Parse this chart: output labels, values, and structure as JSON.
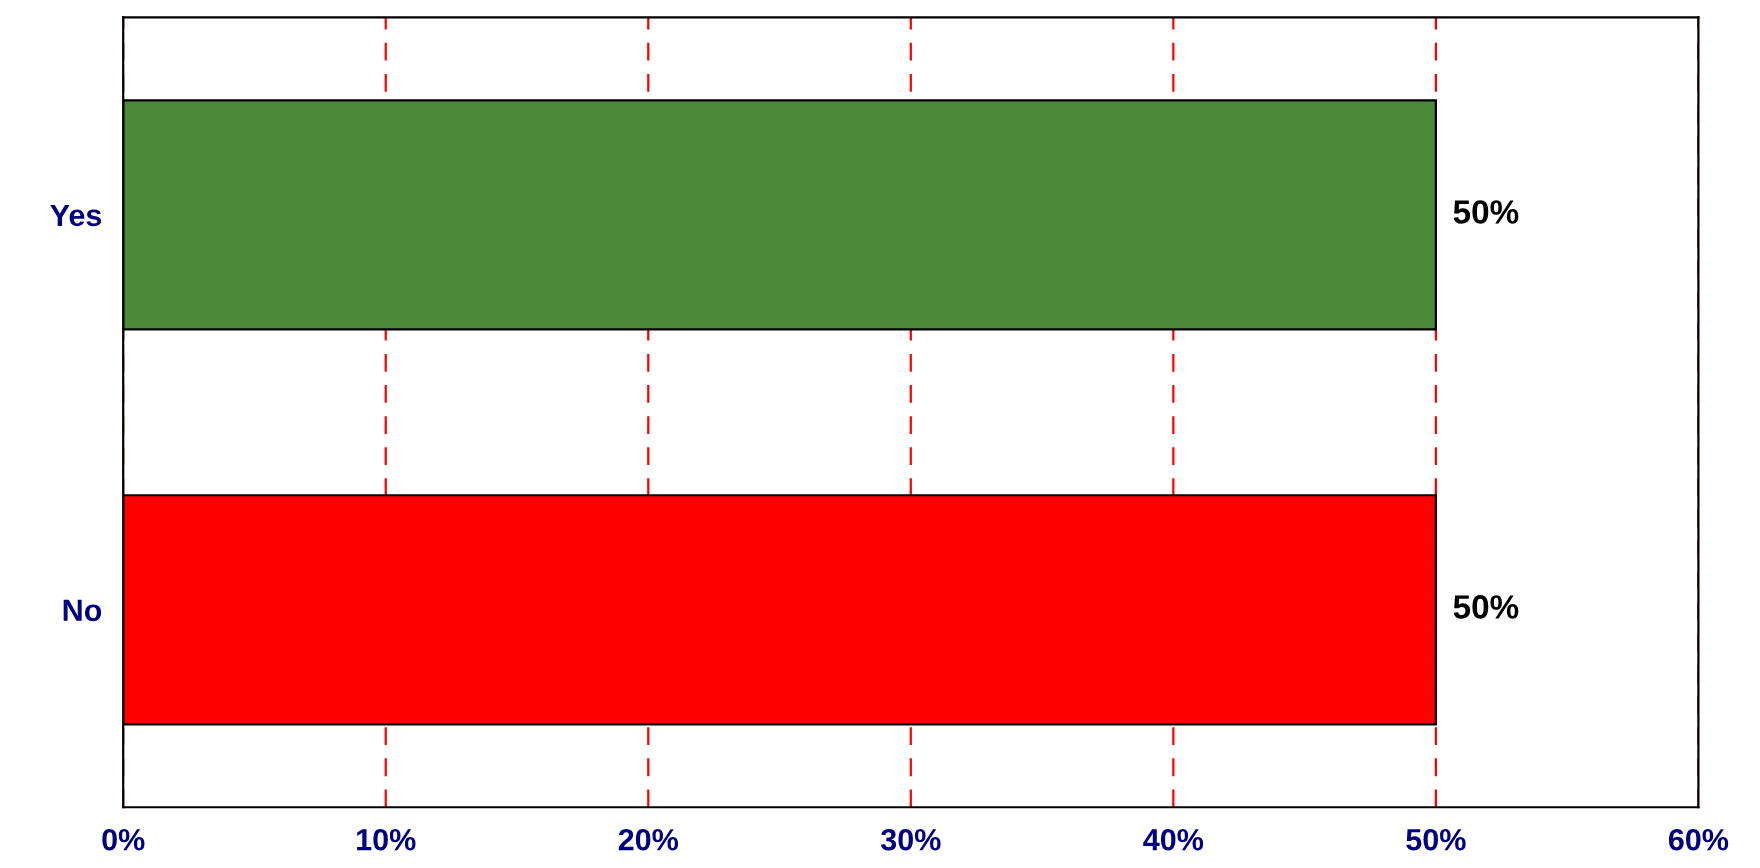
{
  "chart_data": {
    "type": "bar",
    "orientation": "horizontal",
    "categories": [
      "Yes",
      "No"
    ],
    "values": [
      50,
      50
    ],
    "colors": [
      "#4a8a3a",
      "#ff0000"
    ],
    "value_labels": [
      "50%",
      "50%"
    ],
    "xlim": [
      0,
      60
    ],
    "xticks": [
      {
        "value": 0,
        "label": "0%"
      },
      {
        "value": 10,
        "label": "10%"
      },
      {
        "value": 20,
        "label": "20%"
      },
      {
        "value": 30,
        "label": "30%"
      },
      {
        "value": 40,
        "label": "40%"
      },
      {
        "value": 50,
        "label": "50%"
      },
      {
        "value": 60,
        "label": "60%"
      }
    ],
    "grid": "x",
    "legend": false
  }
}
